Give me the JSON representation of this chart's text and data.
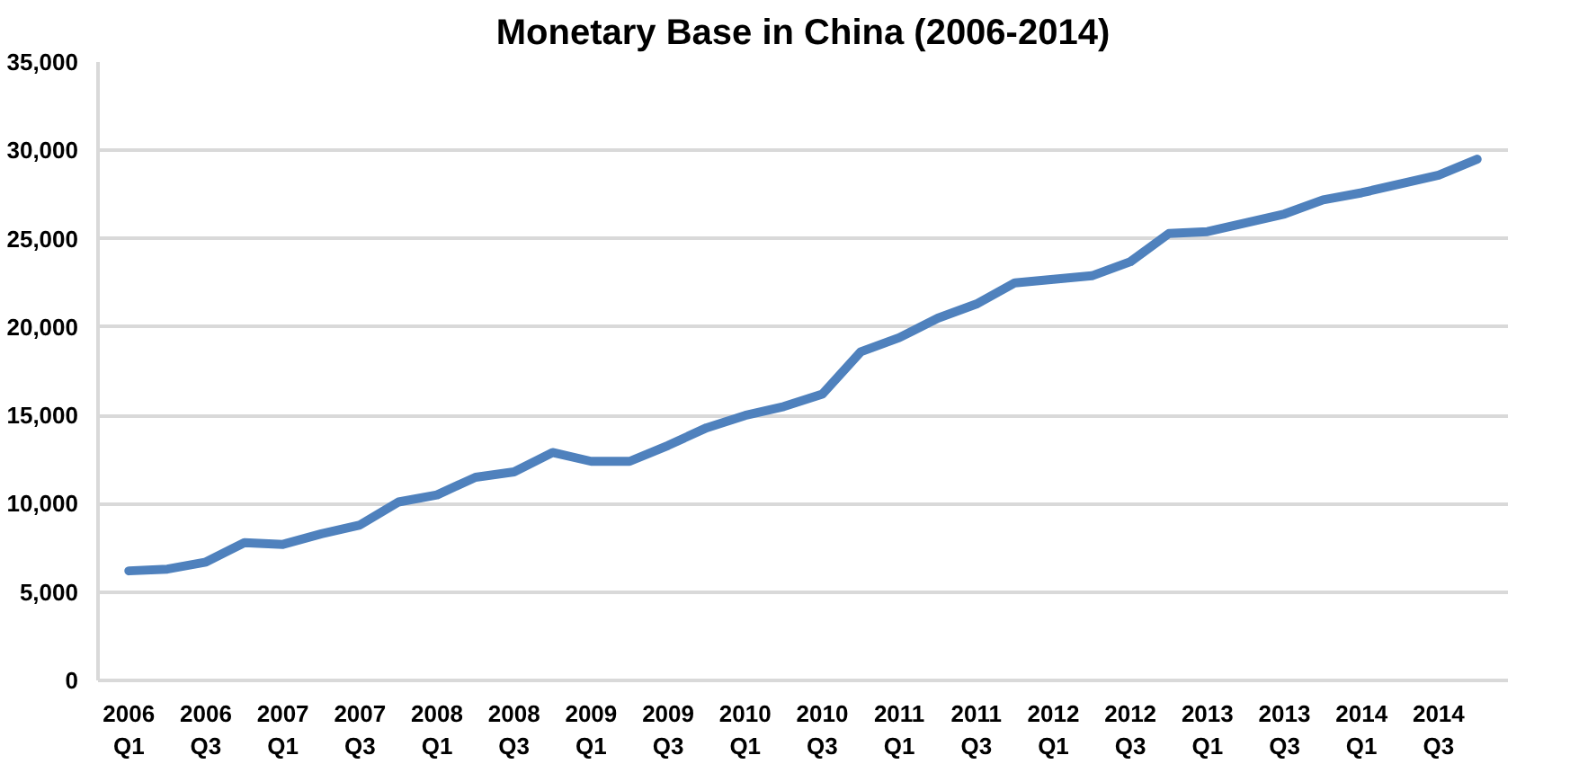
{
  "chart_data": {
    "type": "line",
    "title": "Monetary Base in China (2006-2014)",
    "categories": [
      "2006\nQ1",
      null,
      "2006\nQ3",
      null,
      "2007\nQ1",
      null,
      "2007\nQ3",
      null,
      "2008\nQ1",
      null,
      "2008\nQ3",
      null,
      "2009\nQ1",
      null,
      "2009\nQ3",
      null,
      "2010\nQ1",
      null,
      "2010\nQ3",
      null,
      "2011\nQ1",
      null,
      "2011\nQ3",
      null,
      "2012\nQ1",
      null,
      "2012\nQ3",
      null,
      "2013\nQ1",
      null,
      "2013\nQ3",
      null,
      "2014\nQ1",
      null,
      "2014\nQ3",
      null
    ],
    "series": [
      {
        "color": "#4f81bd",
        "values": [
          6200,
          6300,
          6700,
          7800,
          7700,
          8300,
          8800,
          10100,
          10500,
          11500,
          11800,
          12900,
          12400,
          12400,
          13300,
          14300,
          15000,
          15500,
          16200,
          18600,
          19400,
          20500,
          21300,
          22500,
          22700,
          22900,
          23700,
          25300,
          25400,
          25900,
          26400,
          27200,
          27600,
          28100,
          28600,
          29500
        ]
      }
    ],
    "ylim": [
      0,
      35000
    ],
    "yticks": [
      {
        "value": 0,
        "label": "0"
      },
      {
        "value": 5000,
        "label": "5,000"
      },
      {
        "value": 10000,
        "label": "10,000"
      },
      {
        "value": 15000,
        "label": "15,000"
      },
      {
        "value": 20000,
        "label": "20,000"
      },
      {
        "value": 25000,
        "label": "25,000"
      },
      {
        "value": 30000,
        "label": "30,000"
      },
      {
        "value": 35000,
        "label": "35,000"
      }
    ],
    "grid": "y",
    "marker": "none",
    "line_style": "solid"
  }
}
